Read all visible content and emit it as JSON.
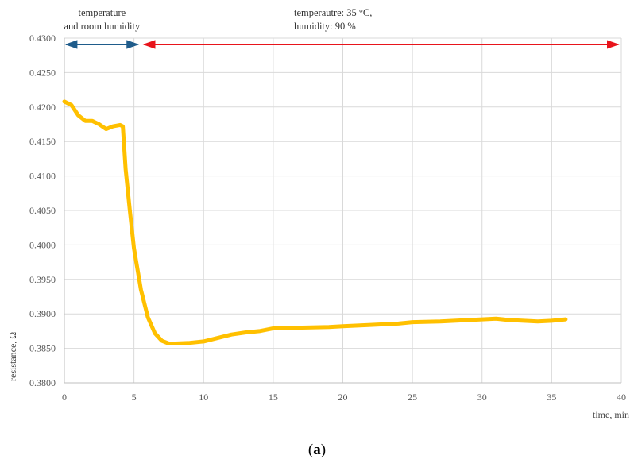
{
  "chart_data": {
    "type": "line",
    "xlabel": "time, min",
    "ylabel": "resistance, Ω",
    "xlim": [
      0,
      40
    ],
    "ylim": [
      0.38,
      0.43
    ],
    "xticks": [
      0,
      5,
      10,
      15,
      20,
      25,
      30,
      35,
      40
    ],
    "yticks": [
      "0.3800",
      "0.3850",
      "0.3900",
      "0.3950",
      "0.4000",
      "0.4050",
      "0.4100",
      "0.4150",
      "0.4200",
      "0.4250",
      "0.4300"
    ],
    "grid": true,
    "series": [
      {
        "color": "#ffc000",
        "x": [
          0,
          0.5,
          1,
          1.5,
          2,
          2.5,
          3,
          3.5,
          4,
          4.2,
          4.4,
          4.7,
          5,
          5.5,
          6,
          6.5,
          7,
          7.5,
          8,
          9,
          10,
          11,
          12,
          13,
          14,
          15,
          17,
          19,
          20,
          22,
          24,
          25,
          27,
          29,
          30,
          31,
          32,
          33,
          34,
          35,
          36
        ],
        "y": [
          0.4208,
          0.4203,
          0.4188,
          0.418,
          0.418,
          0.4175,
          0.4168,
          0.4172,
          0.4174,
          0.4172,
          0.411,
          0.405,
          0.3995,
          0.3935,
          0.3895,
          0.3872,
          0.3861,
          0.3857,
          0.3857,
          0.3858,
          0.386,
          0.3865,
          0.387,
          0.3873,
          0.3875,
          0.3879,
          0.388,
          0.3881,
          0.3882,
          0.3884,
          0.3886,
          0.3888,
          0.3889,
          0.3891,
          0.3892,
          0.3893,
          0.3891,
          0.389,
          0.3889,
          0.389,
          0.3892
        ]
      }
    ],
    "annotations": [
      {
        "label": [
          "temperature",
          "and room humidity"
        ],
        "x_from": 0,
        "x_to": 5.4,
        "color": "#1f5c8b"
      },
      {
        "label": [
          "temperautre: 35 °C,",
          "humidity: 90 %"
        ],
        "x_from": 5.6,
        "x_to": 39.9,
        "color": "#e8141b"
      }
    ]
  },
  "caption": {
    "open": "(",
    "letter": "a",
    "close": ")"
  }
}
